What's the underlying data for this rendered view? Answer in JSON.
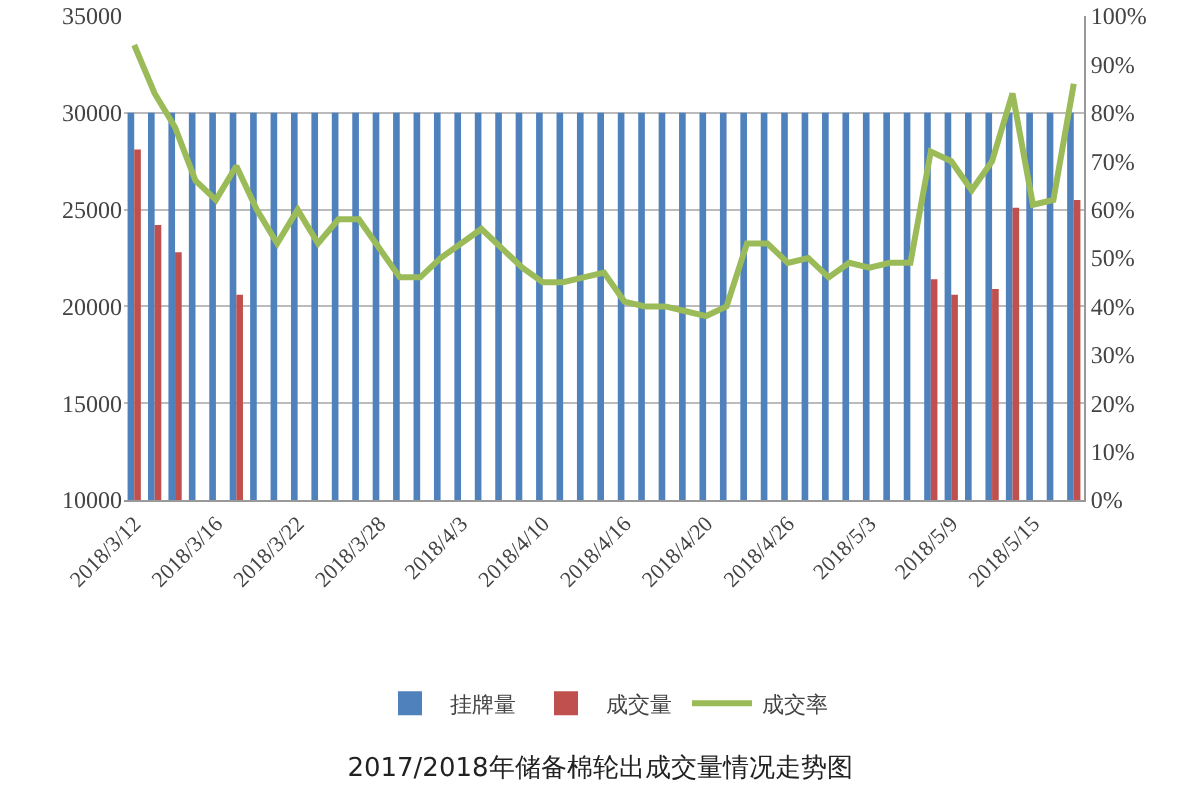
{
  "chart_data": {
    "type": "bar",
    "title": "2017/2018年储备棉轮出成交量情况走势图",
    "categories": [
      "2018/3/12",
      null,
      null,
      null,
      "2018/3/16",
      null,
      null,
      null,
      "2018/3/22",
      null,
      null,
      null,
      "2018/3/28",
      null,
      null,
      null,
      "2018/4/3",
      null,
      null,
      null,
      "2018/4/10",
      null,
      null,
      null,
      "2018/4/16",
      null,
      null,
      null,
      "2018/4/20",
      null,
      null,
      null,
      "2018/4/26",
      null,
      null,
      null,
      "2018/5/3",
      null,
      null,
      null,
      "2018/5/9",
      null,
      null,
      null,
      "2018/5/15",
      null,
      null
    ],
    "series": [
      {
        "name": "挂牌量",
        "color": "#4f81bd",
        "values": [
          30000,
          30000,
          30000,
          30000,
          30000,
          30000,
          30000,
          30000,
          30000,
          30000,
          30000,
          30000,
          30000,
          30000,
          30000,
          30000,
          30000,
          30000,
          30000,
          30000,
          30000,
          30000,
          30000,
          30000,
          30000,
          30000,
          30000,
          30000,
          30000,
          30000,
          30000,
          30000,
          30000,
          30000,
          30000,
          30000,
          30000,
          30000,
          30000,
          30000,
          30000,
          30000,
          30000,
          30000,
          30000,
          30000,
          30000
        ]
      },
      {
        "name": "成交量",
        "color": "#c0504d",
        "values": [
          28100,
          24200,
          22800,
          null,
          null,
          20600,
          null,
          null,
          null,
          null,
          null,
          null,
          null,
          null,
          null,
          null,
          null,
          null,
          null,
          null,
          null,
          null,
          null,
          null,
          null,
          null,
          null,
          null,
          null,
          null,
          null,
          null,
          null,
          null,
          null,
          null,
          null,
          null,
          null,
          21400,
          20600,
          null,
          20900,
          25100,
          null,
          null,
          25500
        ]
      },
      {
        "name": "成交率",
        "color": "#9bbb59",
        "type": "line",
        "axis": "y2",
        "values": [
          94,
          84,
          77,
          66,
          62,
          69,
          60,
          53,
          60,
          53,
          58,
          58,
          52,
          46,
          46,
          50,
          53,
          56,
          52,
          48,
          45,
          45,
          46,
          47,
          41,
          40,
          40,
          39,
          38,
          40,
          53,
          53,
          49,
          50,
          46,
          49,
          48,
          49,
          49,
          72,
          70,
          64,
          70,
          84,
          61,
          62,
          86
        ]
      }
    ],
    "ylim": [
      10000,
      35000
    ],
    "yticks": [
      10000,
      15000,
      20000,
      25000,
      30000,
      35000
    ],
    "y2lim": [
      0,
      100
    ],
    "y2ticks": [
      {
        "value": 0,
        "label": "0%"
      },
      {
        "value": 10,
        "label": "10%"
      },
      {
        "value": 20,
        "label": "20%"
      },
      {
        "value": 30,
        "label": "30%"
      },
      {
        "value": 40,
        "label": "40%"
      },
      {
        "value": 50,
        "label": "50%"
      },
      {
        "value": 60,
        "label": "60%"
      },
      {
        "value": 70,
        "label": "70%"
      },
      {
        "value": 80,
        "label": "80%"
      },
      {
        "value": 90,
        "label": "90%"
      },
      {
        "value": 100,
        "label": "100%"
      }
    ],
    "grid": "y",
    "legend": "bottom"
  }
}
